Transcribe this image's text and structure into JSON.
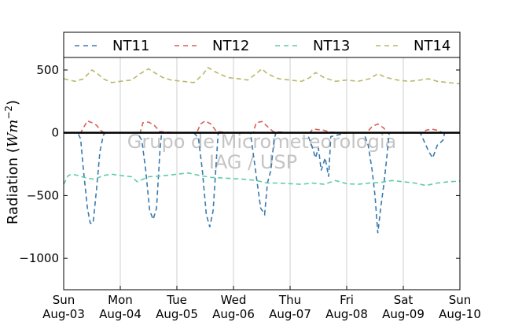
{
  "chart_data": {
    "type": "line",
    "ylabel_prefix": "Radiation (",
    "ylabel_math": "Wm",
    "ylabel_exp": "−2",
    "ylabel_suffix": ")",
    "ylim": [
      -1250,
      600
    ],
    "yticks": [
      500,
      0,
      -500,
      -1000
    ],
    "ytick_labels": [
      "500",
      "0",
      "−500",
      "−1000"
    ],
    "xlim": [
      0,
      7
    ],
    "xticks": [
      0,
      1,
      2,
      3,
      4,
      5,
      6,
      7
    ],
    "xtick_days": [
      "Sun",
      "Mon",
      "Tue",
      "Wed",
      "Thu",
      "Fri",
      "Sat",
      "Sun"
    ],
    "xtick_dates": [
      "Aug-03",
      "Aug-04",
      "Aug-05",
      "Aug-06",
      "Aug-07",
      "Aug-08",
      "Aug-09",
      "Aug-10"
    ],
    "grid": "vertical",
    "legend_position": "top",
    "zero_line": true,
    "watermark": [
      "Grupo de Micrometeorologia",
      "IAG / USP"
    ],
    "series": [
      {
        "name": "NT11",
        "color": "#3a7ab0",
        "x": [
          0,
          0.25,
          0.3,
          0.35,
          0.42,
          0.47,
          0.52,
          0.58,
          0.64,
          0.7,
          0.73,
          1.0,
          1.3,
          1.38,
          1.45,
          1.52,
          1.58,
          1.64,
          1.7,
          1.73,
          2.0,
          2.3,
          2.38,
          2.45,
          2.52,
          2.58,
          2.64,
          2.7,
          2.73,
          3.0,
          3.3,
          3.36,
          3.42,
          3.48,
          3.55,
          3.6,
          3.66,
          3.72,
          3.75,
          4.0,
          4.3,
          4.38,
          4.45,
          4.5,
          4.55,
          4.62,
          4.68,
          4.72,
          5.0,
          5.3,
          5.38,
          5.45,
          5.5,
          5.55,
          5.6,
          5.66,
          5.72,
          5.75,
          6.0,
          6.3,
          6.38,
          6.45,
          6.52,
          6.6,
          6.7,
          6.73,
          7.0
        ],
        "y": [
          0,
          0,
          -50,
          -300,
          -600,
          -720,
          -720,
          -450,
          -150,
          -20,
          0,
          0,
          0,
          -60,
          -300,
          -620,
          -690,
          -600,
          -150,
          0,
          0,
          0,
          -40,
          -300,
          -650,
          -750,
          -620,
          -200,
          0,
          0,
          0,
          -200,
          -400,
          -600,
          -650,
          -400,
          -300,
          -50,
          0,
          0,
          0,
          -100,
          -200,
          -120,
          -300,
          -200,
          -350,
          -30,
          0,
          0,
          -100,
          -300,
          -500,
          -800,
          -600,
          -400,
          -150,
          0,
          0,
          0,
          -80,
          -150,
          -200,
          -100,
          -60,
          0,
          0
        ]
      },
      {
        "name": "NT12",
        "color": "#d86058",
        "x": [
          0,
          0.3,
          0.35,
          0.42,
          0.5,
          0.58,
          0.65,
          0.72,
          1.0,
          1.35,
          1.4,
          1.5,
          1.6,
          1.7,
          2.0,
          2.35,
          2.42,
          2.5,
          2.6,
          2.7,
          3.0,
          3.35,
          3.4,
          3.5,
          3.6,
          3.7,
          4.0,
          4.35,
          4.4,
          4.5,
          4.6,
          4.7,
          5.0,
          5.35,
          5.45,
          5.55,
          5.65,
          5.72,
          6.0,
          6.35,
          6.4,
          6.5,
          6.6,
          6.7,
          7.0
        ],
        "y": [
          0,
          0,
          40,
          95,
          80,
          60,
          20,
          0,
          0,
          0,
          80,
          85,
          60,
          10,
          0,
          0,
          70,
          95,
          70,
          10,
          0,
          0,
          80,
          90,
          50,
          10,
          0,
          0,
          30,
          25,
          20,
          5,
          0,
          0,
          50,
          70,
          40,
          0,
          0,
          0,
          20,
          30,
          20,
          0,
          0
        ]
      },
      {
        "name": "NT13",
        "color": "#5dcca8",
        "x": [
          0,
          0.08,
          0.15,
          0.25,
          0.4,
          0.55,
          0.7,
          0.85,
          1.0,
          1.1,
          1.2,
          1.3,
          1.5,
          1.7,
          1.9,
          2.0,
          2.2,
          2.4,
          2.6,
          2.8,
          3.0,
          3.2,
          3.4,
          3.6,
          3.8,
          4.0,
          4.2,
          4.4,
          4.6,
          4.8,
          5.0,
          5.2,
          5.4,
          5.6,
          5.8,
          6.0,
          6.2,
          6.4,
          6.6,
          6.8,
          7.0
        ],
        "y": [
          -410,
          -340,
          -330,
          -340,
          -360,
          -370,
          -340,
          -330,
          -340,
          -345,
          -350,
          -390,
          -350,
          -345,
          -335,
          -330,
          -320,
          -340,
          -355,
          -360,
          -365,
          -370,
          -380,
          -400,
          -400,
          -405,
          -410,
          -400,
          -410,
          -380,
          -405,
          -410,
          -400,
          -395,
          -380,
          -390,
          -400,
          -420,
          -400,
          -390,
          -385
        ]
      },
      {
        "name": "NT14",
        "color": "#b8b86a",
        "x": [
          0,
          0.1,
          0.2,
          0.35,
          0.5,
          0.6,
          0.7,
          0.85,
          1.0,
          1.2,
          1.35,
          1.5,
          1.6,
          1.75,
          1.9,
          2.1,
          2.3,
          2.45,
          2.55,
          2.7,
          2.9,
          3.1,
          3.25,
          3.4,
          3.5,
          3.6,
          3.8,
          4.0,
          4.2,
          4.35,
          4.45,
          4.6,
          4.8,
          5.0,
          5.2,
          5.4,
          5.55,
          5.7,
          5.9,
          6.1,
          6.3,
          6.45,
          6.6,
          6.8,
          7.0
        ],
        "y": [
          430,
          420,
          410,
          430,
          500,
          470,
          430,
          400,
          410,
          420,
          470,
          510,
          480,
          440,
          420,
          410,
          400,
          460,
          520,
          480,
          440,
          430,
          420,
          470,
          510,
          470,
          430,
          420,
          410,
          440,
          480,
          440,
          410,
          420,
          410,
          430,
          470,
          440,
          420,
          410,
          420,
          430,
          410,
          400,
          390
        ]
      }
    ]
  }
}
